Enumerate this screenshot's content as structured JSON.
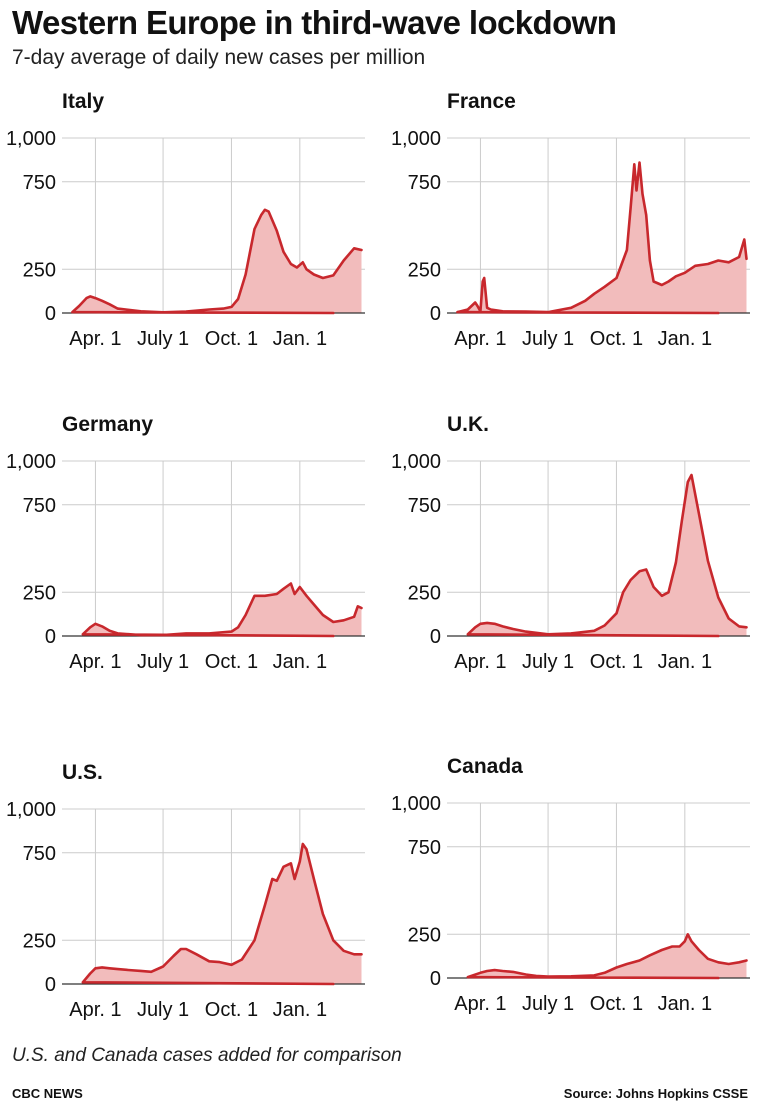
{
  "header": {
    "title": "Western Europe in third-wave lockdown",
    "subtitle": "7-day average of daily new cases per million"
  },
  "footer": {
    "note": "U.S. and Canada cases added for comparison",
    "credit": "CBC NEWS",
    "source": "Source: Johns Hopkins CSSE"
  },
  "colors": {
    "line": "#c8282d",
    "fill": "#f2bcbc",
    "grid": "#cccccc",
    "baseline": "#333333"
  },
  "chart_data": [
    {
      "type": "area",
      "title": "Italy",
      "ylim": [
        0,
        1000
      ],
      "yticks": [
        0,
        250,
        750,
        1000
      ],
      "ytick_labels": [
        "0",
        "250",
        "750",
        "1,000"
      ],
      "xticks": [
        "Apr. 1",
        "July 1",
        "Oct. 1",
        "Jan. 1"
      ],
      "grid": true,
      "x": [
        "Feb. 15",
        "Mar. 1",
        "Mar. 10",
        "Mar. 20",
        "Mar. 25",
        "Apr. 1",
        "Apr. 10",
        "Apr. 20",
        "May 1",
        "June 1",
        "July 1",
        "Aug. 1",
        "Sept. 1",
        "Sept. 20",
        "Oct. 1",
        "Oct. 10",
        "Oct. 20",
        "Nov. 1",
        "Nov. 10",
        "Nov. 15",
        "Nov. 20",
        "Dec. 1",
        "Dec. 10",
        "Dec. 20",
        "Dec. 28",
        "Jan. 5",
        "Jan. 10",
        "Jan. 20",
        "Feb. 1",
        "Feb. 15",
        "Mar. 1",
        "Mar. 15",
        "Mar. 25"
      ],
      "values": [
        0,
        5,
        40,
        85,
        95,
        85,
        70,
        50,
        25,
        10,
        4,
        8,
        20,
        25,
        35,
        80,
        220,
        480,
        560,
        590,
        580,
        470,
        350,
        280,
        260,
        290,
        250,
        220,
        200,
        215,
        300,
        370,
        360
      ]
    },
    {
      "type": "area",
      "title": "France",
      "ylim": [
        0,
        1000
      ],
      "yticks": [
        0,
        250,
        750,
        1000
      ],
      "ytick_labels": [
        "0",
        "250",
        "750",
        "1,000"
      ],
      "xticks": [
        "Apr. 1",
        "July 1",
        "Oct. 1",
        "Jan. 1"
      ],
      "grid": true,
      "x": [
        "Feb. 15",
        "Mar. 1",
        "Mar. 15",
        "Mar. 25",
        "Mar. 28",
        "Apr. 1",
        "Apr. 4",
        "Apr. 6",
        "Apr. 10",
        "Apr. 15",
        "May 1",
        "June 1",
        "July 1",
        "Aug. 1",
        "Aug. 20",
        "Sept. 1",
        "Sept. 15",
        "Oct. 1",
        "Oct. 15",
        "Oct. 20",
        "Oct. 25",
        "Oct. 28",
        "Nov. 1",
        "Nov. 5",
        "Nov. 10",
        "Nov. 15",
        "Nov. 20",
        "Dec. 1",
        "Dec. 10",
        "Dec. 20",
        "Jan. 1",
        "Jan. 15",
        "Feb. 1",
        "Feb. 15",
        "Mar. 1",
        "Mar. 15",
        "Mar. 22",
        "Mar. 25"
      ],
      "values": [
        0,
        5,
        20,
        60,
        40,
        10,
        180,
        200,
        30,
        20,
        10,
        8,
        5,
        30,
        70,
        110,
        150,
        200,
        360,
        600,
        850,
        700,
        860,
        680,
        560,
        300,
        180,
        160,
        180,
        210,
        230,
        270,
        280,
        300,
        290,
        320,
        420,
        310
      ]
    },
    {
      "type": "area",
      "title": "Germany",
      "ylim": [
        0,
        1000
      ],
      "yticks": [
        0,
        250,
        750,
        1000
      ],
      "ytick_labels": [
        "0",
        "250",
        "750",
        "1,000"
      ],
      "xticks": [
        "Apr. 1",
        "July 1",
        "Oct. 1",
        "Jan. 1"
      ],
      "grid": true,
      "x": [
        "Feb. 15",
        "Mar. 15",
        "Mar. 25",
        "Apr. 1",
        "Apr. 10",
        "Apr. 20",
        "May 1",
        "June 1",
        "July 1",
        "Aug. 1",
        "Sept. 1",
        "Oct. 1",
        "Oct. 10",
        "Oct. 20",
        "Nov. 1",
        "Nov. 15",
        "Dec. 1",
        "Dec. 10",
        "Dec. 20",
        "Dec. 25",
        "Jan. 1",
        "Jan. 10",
        "Jan. 20",
        "Feb. 1",
        "Feb. 15",
        "Mar. 1",
        "Mar. 15",
        "Mar. 20",
        "Mar. 25"
      ],
      "values": [
        0,
        10,
        50,
        70,
        55,
        30,
        15,
        5,
        5,
        15,
        15,
        25,
        50,
        120,
        230,
        230,
        240,
        270,
        300,
        240,
        280,
        230,
        180,
        120,
        80,
        90,
        110,
        170,
        160
      ]
    },
    {
      "type": "area",
      "title": "U.K.",
      "ylim": [
        0,
        1000
      ],
      "yticks": [
        0,
        250,
        750,
        1000
      ],
      "ytick_labels": [
        "0",
        "250",
        "750",
        "1,000"
      ],
      "xticks": [
        "Apr. 1",
        "July 1",
        "Oct. 1",
        "Jan. 1"
      ],
      "grid": true,
      "x": [
        "Feb. 15",
        "Mar. 15",
        "Mar. 25",
        "Apr. 1",
        "Apr. 10",
        "Apr. 20",
        "May 1",
        "May 15",
        "June 1",
        "July 1",
        "Aug. 1",
        "Sept. 1",
        "Sept. 15",
        "Oct. 1",
        "Oct. 10",
        "Oct. 20",
        "Nov. 1",
        "Nov. 10",
        "Nov. 20",
        "Dec. 1",
        "Dec. 10",
        "Dec. 20",
        "Dec. 28",
        "Jan. 5",
        "Jan. 10",
        "Jan. 20",
        "Feb. 1",
        "Feb. 15",
        "Mar. 1",
        "Mar. 15",
        "Mar. 25"
      ],
      "values": [
        0,
        10,
        50,
        70,
        75,
        70,
        55,
        40,
        25,
        10,
        15,
        30,
        60,
        130,
        250,
        320,
        370,
        380,
        280,
        230,
        250,
        420,
        660,
        880,
        920,
        700,
        430,
        220,
        100,
        55,
        50
      ]
    },
    {
      "type": "area",
      "title": "U.S.",
      "ylim": [
        0,
        1000
      ],
      "yticks": [
        0,
        250,
        750,
        1000
      ],
      "ytick_labels": [
        "0",
        "250",
        "750",
        "1,000"
      ],
      "xticks": [
        "Apr. 1",
        "July 1",
        "Oct. 1",
        "Jan. 1"
      ],
      "grid": true,
      "x": [
        "Feb. 15",
        "Mar. 15",
        "Mar. 25",
        "Apr. 1",
        "Apr. 10",
        "Apr. 20",
        "May 1",
        "May 15",
        "June 1",
        "June 15",
        "July 1",
        "July 15",
        "July 25",
        "Aug. 1",
        "Aug. 15",
        "Sept. 1",
        "Sept. 15",
        "Oct. 1",
        "Oct. 15",
        "Nov. 1",
        "Nov. 15",
        "Nov. 25",
        "Dec. 1",
        "Dec. 10",
        "Dec. 20",
        "Dec. 25",
        "Jan. 1",
        "Jan. 5",
        "Jan. 10",
        "Jan. 20",
        "Feb. 1",
        "Feb. 15",
        "Mar. 1",
        "Mar. 15",
        "Mar. 25"
      ],
      "values": [
        0,
        10,
        60,
        90,
        95,
        90,
        85,
        80,
        75,
        70,
        100,
        160,
        200,
        200,
        170,
        130,
        125,
        110,
        140,
        250,
        450,
        600,
        590,
        670,
        690,
        600,
        700,
        800,
        770,
        600,
        400,
        250,
        190,
        170,
        170
      ]
    },
    {
      "type": "area",
      "title": "Canada",
      "ylim": [
        0,
        1000
      ],
      "yticks": [
        0,
        250,
        750,
        1000
      ],
      "ytick_labels": [
        "0",
        "250",
        "750",
        "1,000"
      ],
      "xticks": [
        "Apr. 1",
        "July 1",
        "Oct. 1",
        "Jan. 1"
      ],
      "grid": true,
      "x": [
        "Feb. 15",
        "Mar. 15",
        "Apr. 1",
        "Apr. 10",
        "Apr. 20",
        "May 1",
        "May 15",
        "June 1",
        "June 15",
        "July 1",
        "Aug. 1",
        "Sept. 1",
        "Sept. 15",
        "Oct. 1",
        "Oct. 15",
        "Nov. 1",
        "Nov. 15",
        "Dec. 1",
        "Dec. 15",
        "Dec. 25",
        "Jan. 1",
        "Jan. 5",
        "Jan. 10",
        "Jan. 20",
        "Feb. 1",
        "Feb. 15",
        "Mar. 1",
        "Mar. 15",
        "Mar. 25"
      ],
      "values": [
        0,
        5,
        30,
        40,
        45,
        40,
        35,
        20,
        12,
        8,
        10,
        15,
        30,
        60,
        80,
        100,
        130,
        160,
        180,
        180,
        210,
        250,
        210,
        160,
        110,
        90,
        80,
        90,
        100
      ]
    }
  ]
}
